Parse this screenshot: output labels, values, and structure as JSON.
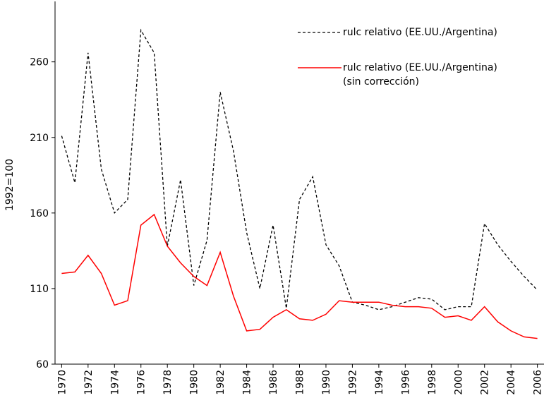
{
  "chart_data": {
    "type": "line",
    "y_label": "1992=100",
    "x": [
      1970,
      1971,
      1972,
      1973,
      1974,
      1975,
      1976,
      1977,
      1978,
      1979,
      1980,
      1981,
      1982,
      1983,
      1984,
      1985,
      1986,
      1987,
      1988,
      1989,
      1990,
      1991,
      1992,
      1993,
      1994,
      1995,
      1996,
      1997,
      1998,
      1999,
      2000,
      2001,
      2002,
      2003,
      2004,
      2005,
      2006
    ],
    "series": [
      {
        "name": "rulc relativo (EE.UU./Argentina)",
        "color": "#000000",
        "dash": true,
        "values": [
          211,
          180,
          266,
          189,
          160,
          169,
          281,
          266,
          138,
          182,
          112,
          142,
          240,
          201,
          147,
          110,
          152,
          97,
          169,
          184,
          139,
          125,
          101,
          99,
          96,
          98,
          101,
          104,
          103,
          96,
          98,
          98,
          153,
          139,
          128,
          118,
          109
        ]
      },
      {
        "name": "rulc relativo (EE.UU./Argentina)\n(sin corrección)",
        "color": "#ff0000",
        "dash": false,
        "values": [
          120,
          121,
          132,
          120,
          99,
          102,
          152,
          159,
          138,
          127,
          118,
          112,
          134,
          105,
          82,
          83,
          91,
          96,
          90,
          89,
          93,
          102,
          101,
          101,
          101,
          99,
          98,
          98,
          97,
          91,
          92,
          89,
          98,
          88,
          82,
          78,
          77
        ]
      }
    ],
    "xlim": [
      1969.5,
      2006.5
    ],
    "xticks": [
      1970,
      1972,
      1974,
      1976,
      1978,
      1980,
      1982,
      1984,
      1986,
      1988,
      1990,
      1992,
      1994,
      1996,
      1998,
      2000,
      2002,
      2004,
      2006
    ],
    "ylim": [
      60,
      300
    ],
    "yticks": [
      60,
      110,
      160,
      210,
      260
    ]
  }
}
